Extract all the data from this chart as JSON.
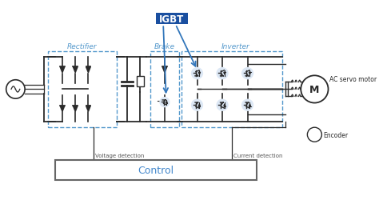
{
  "title": "IGBT",
  "sections": [
    "Rectifier",
    "Brake",
    "Inverter"
  ],
  "bottom_label": "Control",
  "left_label_top": "Voltage detection",
  "right_label_top": "Current detection",
  "right_labels": [
    "AC servo motor",
    "Encoder"
  ],
  "bg_color": "#ffffff",
  "line_color": "#2a2a2a",
  "dash_box_color": "#5599cc",
  "igbt_bg": "#1a4fa0",
  "igbt_text_color": "#ffffff",
  "section_label_color": "#5599cc",
  "control_text_color": "#4488cc",
  "igbt_arrow_color": "#3377bb",
  "igbt_circle_color": "#dde8f5"
}
